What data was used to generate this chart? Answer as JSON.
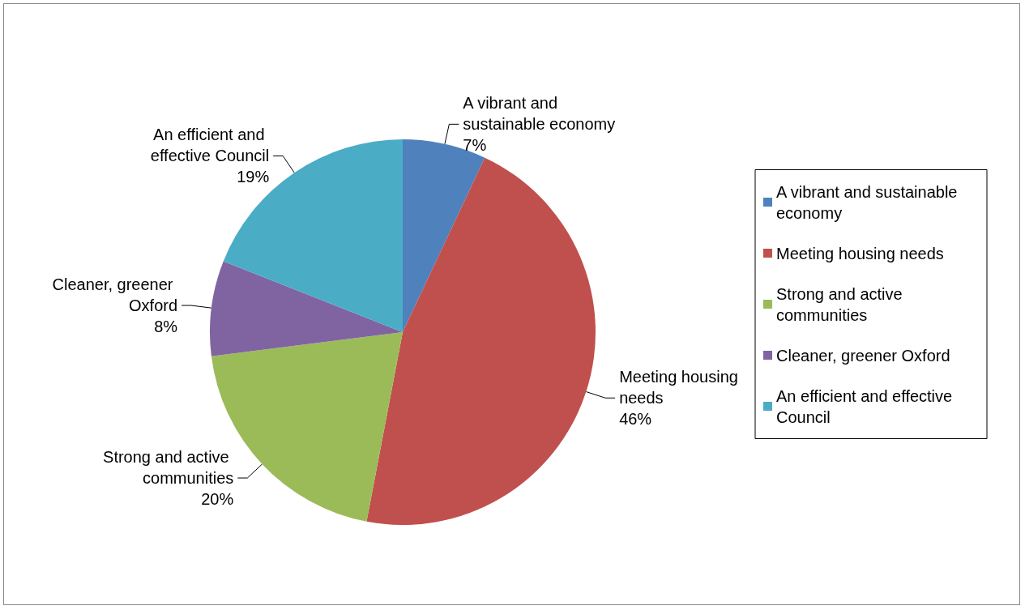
{
  "chart_data": {
    "type": "pie",
    "categories": [
      "A vibrant and sustainable economy",
      "Meeting housing needs",
      "Strong and active communities",
      "Cleaner, greener Oxford",
      "An efficient and effective Council"
    ],
    "values": [
      7,
      46,
      20,
      8,
      19
    ],
    "colors": [
      "#4f81bd",
      "#c0504d",
      "#9bbb59",
      "#8064a2",
      "#4bacc6"
    ],
    "value_labels": [
      "7%",
      "46%",
      "20%",
      "8%",
      "19%"
    ],
    "legend": "right"
  }
}
